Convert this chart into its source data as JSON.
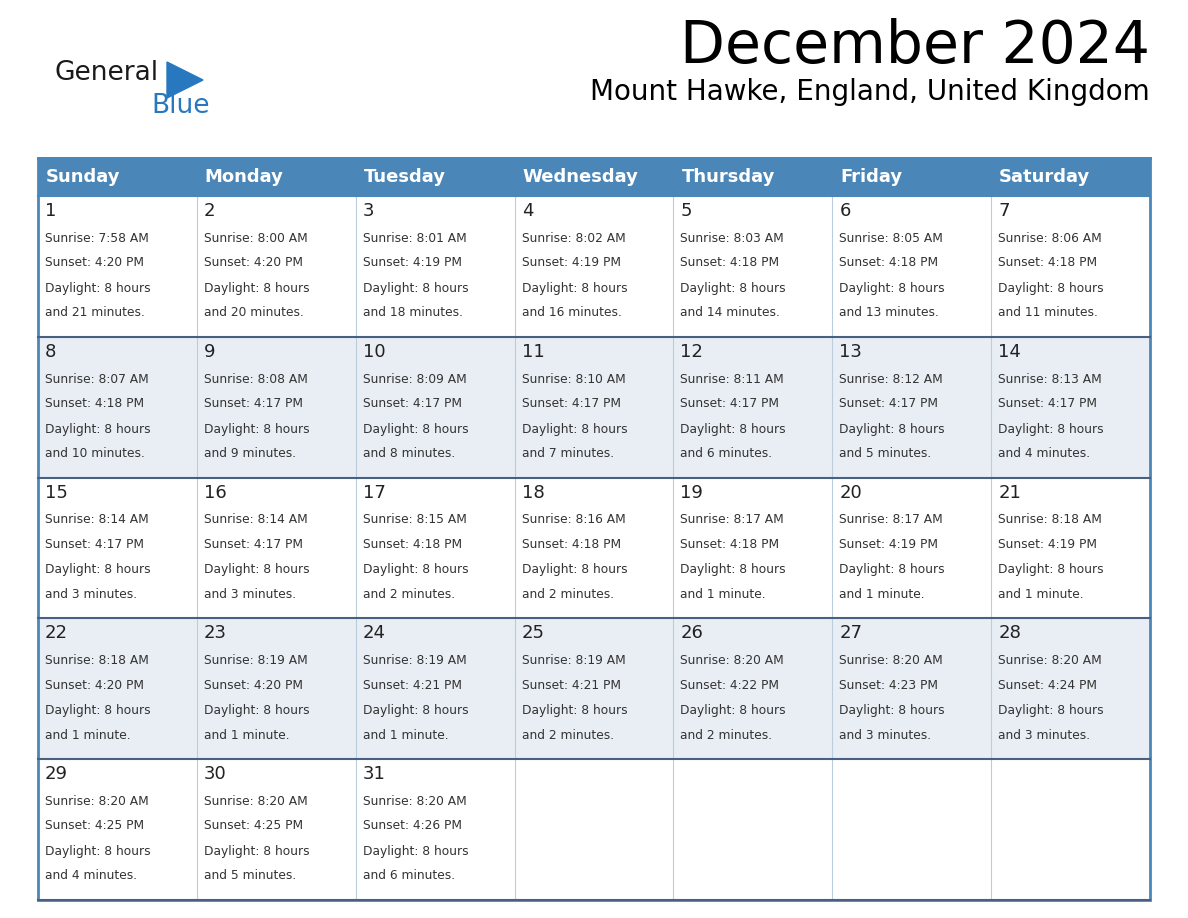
{
  "title": "December 2024",
  "subtitle": "Mount Hawke, England, United Kingdom",
  "days_of_week": [
    "Sunday",
    "Monday",
    "Tuesday",
    "Wednesday",
    "Thursday",
    "Friday",
    "Saturday"
  ],
  "header_bg": "#4a86b8",
  "header_text": "#ffffff",
  "row_bg_even": "#ffffff",
  "row_bg_odd": "#e8eef4",
  "border_color_header": "#4a86b8",
  "border_color_row": "#4a6080",
  "text_color": "#333333",
  "day_num_color": "#222222",
  "logo_general_color": "#1a1a1a",
  "logo_blue_color": "#2878c0",
  "calendar_data": [
    {
      "day": 1,
      "col": 0,
      "row": 0,
      "sunrise": "7:58 AM",
      "sunset": "4:20 PM",
      "daylight": "8 hours and 21 minutes."
    },
    {
      "day": 2,
      "col": 1,
      "row": 0,
      "sunrise": "8:00 AM",
      "sunset": "4:20 PM",
      "daylight": "8 hours and 20 minutes."
    },
    {
      "day": 3,
      "col": 2,
      "row": 0,
      "sunrise": "8:01 AM",
      "sunset": "4:19 PM",
      "daylight": "8 hours and 18 minutes."
    },
    {
      "day": 4,
      "col": 3,
      "row": 0,
      "sunrise": "8:02 AM",
      "sunset": "4:19 PM",
      "daylight": "8 hours and 16 minutes."
    },
    {
      "day": 5,
      "col": 4,
      "row": 0,
      "sunrise": "8:03 AM",
      "sunset": "4:18 PM",
      "daylight": "8 hours and 14 minutes."
    },
    {
      "day": 6,
      "col": 5,
      "row": 0,
      "sunrise": "8:05 AM",
      "sunset": "4:18 PM",
      "daylight": "8 hours and 13 minutes."
    },
    {
      "day": 7,
      "col": 6,
      "row": 0,
      "sunrise": "8:06 AM",
      "sunset": "4:18 PM",
      "daylight": "8 hours and 11 minutes."
    },
    {
      "day": 8,
      "col": 0,
      "row": 1,
      "sunrise": "8:07 AM",
      "sunset": "4:18 PM",
      "daylight": "8 hours and 10 minutes."
    },
    {
      "day": 9,
      "col": 1,
      "row": 1,
      "sunrise": "8:08 AM",
      "sunset": "4:17 PM",
      "daylight": "8 hours and 9 minutes."
    },
    {
      "day": 10,
      "col": 2,
      "row": 1,
      "sunrise": "8:09 AM",
      "sunset": "4:17 PM",
      "daylight": "8 hours and 8 minutes."
    },
    {
      "day": 11,
      "col": 3,
      "row": 1,
      "sunrise": "8:10 AM",
      "sunset": "4:17 PM",
      "daylight": "8 hours and 7 minutes."
    },
    {
      "day": 12,
      "col": 4,
      "row": 1,
      "sunrise": "8:11 AM",
      "sunset": "4:17 PM",
      "daylight": "8 hours and 6 minutes."
    },
    {
      "day": 13,
      "col": 5,
      "row": 1,
      "sunrise": "8:12 AM",
      "sunset": "4:17 PM",
      "daylight": "8 hours and 5 minutes."
    },
    {
      "day": 14,
      "col": 6,
      "row": 1,
      "sunrise": "8:13 AM",
      "sunset": "4:17 PM",
      "daylight": "8 hours and 4 minutes."
    },
    {
      "day": 15,
      "col": 0,
      "row": 2,
      "sunrise": "8:14 AM",
      "sunset": "4:17 PM",
      "daylight": "8 hours and 3 minutes."
    },
    {
      "day": 16,
      "col": 1,
      "row": 2,
      "sunrise": "8:14 AM",
      "sunset": "4:17 PM",
      "daylight": "8 hours and 3 minutes."
    },
    {
      "day": 17,
      "col": 2,
      "row": 2,
      "sunrise": "8:15 AM",
      "sunset": "4:18 PM",
      "daylight": "8 hours and 2 minutes."
    },
    {
      "day": 18,
      "col": 3,
      "row": 2,
      "sunrise": "8:16 AM",
      "sunset": "4:18 PM",
      "daylight": "8 hours and 2 minutes."
    },
    {
      "day": 19,
      "col": 4,
      "row": 2,
      "sunrise": "8:17 AM",
      "sunset": "4:18 PM",
      "daylight": "8 hours and 1 minute."
    },
    {
      "day": 20,
      "col": 5,
      "row": 2,
      "sunrise": "8:17 AM",
      "sunset": "4:19 PM",
      "daylight": "8 hours and 1 minute."
    },
    {
      "day": 21,
      "col": 6,
      "row": 2,
      "sunrise": "8:18 AM",
      "sunset": "4:19 PM",
      "daylight": "8 hours and 1 minute."
    },
    {
      "day": 22,
      "col": 0,
      "row": 3,
      "sunrise": "8:18 AM",
      "sunset": "4:20 PM",
      "daylight": "8 hours and 1 minute."
    },
    {
      "day": 23,
      "col": 1,
      "row": 3,
      "sunrise": "8:19 AM",
      "sunset": "4:20 PM",
      "daylight": "8 hours and 1 minute."
    },
    {
      "day": 24,
      "col": 2,
      "row": 3,
      "sunrise": "8:19 AM",
      "sunset": "4:21 PM",
      "daylight": "8 hours and 1 minute."
    },
    {
      "day": 25,
      "col": 3,
      "row": 3,
      "sunrise": "8:19 AM",
      "sunset": "4:21 PM",
      "daylight": "8 hours and 2 minutes."
    },
    {
      "day": 26,
      "col": 4,
      "row": 3,
      "sunrise": "8:20 AM",
      "sunset": "4:22 PM",
      "daylight": "8 hours and 2 minutes."
    },
    {
      "day": 27,
      "col": 5,
      "row": 3,
      "sunrise": "8:20 AM",
      "sunset": "4:23 PM",
      "daylight": "8 hours and 3 minutes."
    },
    {
      "day": 28,
      "col": 6,
      "row": 3,
      "sunrise": "8:20 AM",
      "sunset": "4:24 PM",
      "daylight": "8 hours and 3 minutes."
    },
    {
      "day": 29,
      "col": 0,
      "row": 4,
      "sunrise": "8:20 AM",
      "sunset": "4:25 PM",
      "daylight": "8 hours and 4 minutes."
    },
    {
      "day": 30,
      "col": 1,
      "row": 4,
      "sunrise": "8:20 AM",
      "sunset": "4:25 PM",
      "daylight": "8 hours and 5 minutes."
    },
    {
      "day": 31,
      "col": 2,
      "row": 4,
      "sunrise": "8:20 AM",
      "sunset": "4:26 PM",
      "daylight": "8 hours and 6 minutes."
    }
  ]
}
